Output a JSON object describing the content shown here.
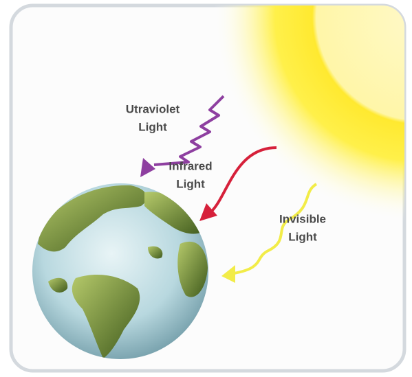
{
  "labels": [
    {
      "lines": [
        "Utraviolet",
        "Light"
      ]
    },
    {
      "lines": [
        "Infrared",
        "Light"
      ]
    },
    {
      "lines": [
        "Invisible",
        "Light"
      ]
    }
  ]
}
